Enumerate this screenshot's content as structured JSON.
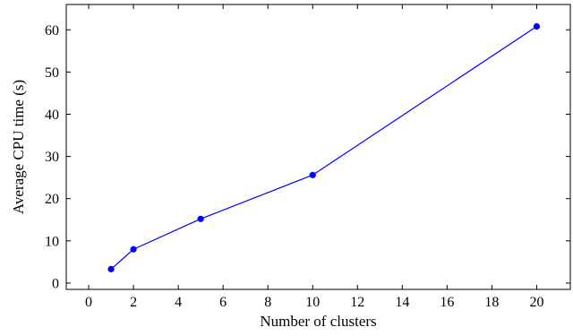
{
  "chart_data": {
    "type": "line",
    "xlabel": "Number of clusters",
    "ylabel": "Average CPU time (s)",
    "xlim": [
      -1,
      21.5
    ],
    "ylim": [
      -1.5,
      66
    ],
    "xticks": [
      0,
      2,
      4,
      6,
      8,
      10,
      12,
      14,
      16,
      18,
      20
    ],
    "yticks": [
      0,
      10,
      20,
      30,
      40,
      50,
      60
    ],
    "grid": false,
    "series": [
      {
        "color": "#0000ff",
        "marker": "circle",
        "x": [
          1,
          2,
          5,
          10,
          20
        ],
        "y": [
          3.3,
          8.0,
          15.2,
          25.6,
          60.8
        ]
      }
    ]
  }
}
